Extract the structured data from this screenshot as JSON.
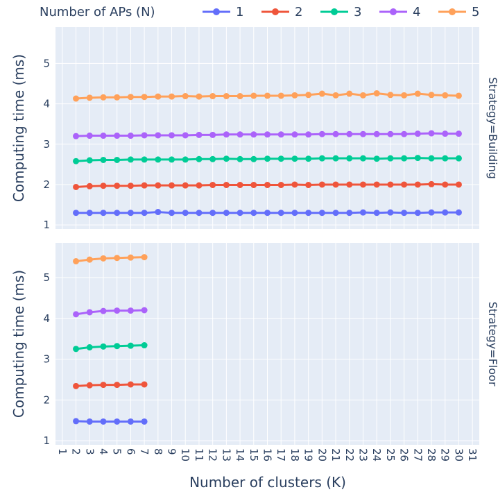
{
  "chart_data": {
    "type": "line",
    "legend": {
      "title": "Number of APs (N)",
      "placement": "top"
    },
    "xlabel": "Number of clusters (K)",
    "ylabel": "Computing time (ms)",
    "x_ticks": [
      1,
      2,
      3,
      4,
      5,
      6,
      7,
      8,
      9,
      10,
      11,
      12,
      13,
      14,
      15,
      16,
      17,
      18,
      19,
      20,
      21,
      22,
      23,
      24,
      25,
      26,
      27,
      28,
      29,
      30,
      31
    ],
    "xlim": [
      0.5,
      31.5
    ],
    "colors": {
      "1": "#636efa",
      "2": "#ef553b",
      "3": "#00cc96",
      "4": "#ab63fa",
      "5": "#ffa15a"
    },
    "facets": [
      {
        "label": "Strategy=Building",
        "ylim": [
          0.9,
          5.9
        ],
        "y_ticks": [
          1,
          2,
          3,
          4,
          5
        ],
        "x": [
          2,
          3,
          4,
          5,
          6,
          7,
          8,
          9,
          10,
          11,
          12,
          13,
          14,
          15,
          16,
          17,
          18,
          19,
          20,
          21,
          22,
          23,
          24,
          25,
          26,
          27,
          28,
          29,
          30
        ],
        "series": [
          {
            "name": "1",
            "values": [
              1.3,
              1.3,
              1.3,
              1.3,
              1.3,
              1.3,
              1.32,
              1.3,
              1.3,
              1.3,
              1.3,
              1.3,
              1.3,
              1.3,
              1.3,
              1.3,
              1.3,
              1.3,
              1.3,
              1.3,
              1.3,
              1.31,
              1.3,
              1.31,
              1.3,
              1.3,
              1.31,
              1.31,
              1.31
            ]
          },
          {
            "name": "2",
            "values": [
              1.94,
              1.96,
              1.97,
              1.97,
              1.97,
              1.98,
              1.98,
              1.98,
              1.98,
              1.98,
              1.99,
              1.99,
              1.99,
              1.99,
              1.99,
              1.99,
              2.0,
              1.99,
              2.0,
              2.0,
              2.0,
              2.0,
              2.0,
              2.0,
              2.0,
              2.0,
              2.01,
              2.0,
              2.0
            ]
          },
          {
            "name": "3",
            "values": [
              2.58,
              2.6,
              2.61,
              2.61,
              2.62,
              2.62,
              2.62,
              2.62,
              2.62,
              2.63,
              2.63,
              2.64,
              2.63,
              2.63,
              2.64,
              2.64,
              2.64,
              2.64,
              2.65,
              2.65,
              2.65,
              2.65,
              2.64,
              2.65,
              2.65,
              2.66,
              2.65,
              2.65,
              2.65
            ]
          },
          {
            "name": "4",
            "values": [
              3.2,
              3.21,
              3.21,
              3.21,
              3.21,
              3.22,
              3.22,
              3.22,
              3.22,
              3.23,
              3.23,
              3.24,
              3.24,
              3.24,
              3.24,
              3.24,
              3.24,
              3.24,
              3.25,
              3.25,
              3.25,
              3.25,
              3.25,
              3.25,
              3.25,
              3.26,
              3.27,
              3.26,
              3.26
            ]
          },
          {
            "name": "5",
            "values": [
              4.13,
              4.15,
              4.16,
              4.16,
              4.17,
              4.17,
              4.18,
              4.18,
              4.19,
              4.18,
              4.19,
              4.19,
              4.19,
              4.2,
              4.2,
              4.2,
              4.21,
              4.22,
              4.25,
              4.21,
              4.25,
              4.21,
              4.26,
              4.22,
              4.21,
              4.25,
              4.22,
              4.21,
              4.2
            ]
          }
        ]
      },
      {
        "label": "Strategy=Floor",
        "ylim": [
          0.9,
          5.85
        ],
        "y_ticks": [
          1,
          2,
          3,
          4,
          5
        ],
        "x": [
          2,
          3,
          4,
          5,
          6,
          7
        ],
        "series": [
          {
            "name": "1",
            "values": [
              1.48,
              1.47,
              1.47,
              1.47,
              1.47,
              1.47
            ]
          },
          {
            "name": "2",
            "values": [
              2.34,
              2.36,
              2.37,
              2.37,
              2.38,
              2.38
            ]
          },
          {
            "name": "3",
            "values": [
              3.25,
              3.29,
              3.31,
              3.32,
              3.33,
              3.34
            ]
          },
          {
            "name": "4",
            "values": [
              4.1,
              4.15,
              4.18,
              4.19,
              4.19,
              4.2
            ]
          },
          {
            "name": "5",
            "values": [
              5.4,
              5.44,
              5.47,
              5.48,
              5.49,
              5.5
            ]
          }
        ]
      }
    ]
  }
}
